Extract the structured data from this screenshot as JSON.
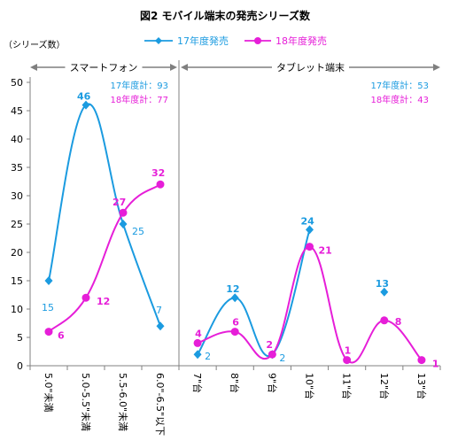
{
  "chart_data": {
    "type": "line",
    "title": "図2 モバイル端末の発売シリーズ数",
    "ylabel": "（シリーズ数）",
    "ylim": [
      0,
      50
    ],
    "yticks": [
      0,
      5,
      10,
      15,
      20,
      25,
      30,
      35,
      40,
      45,
      50
    ],
    "grid": false,
    "legend_position": "top",
    "sections": [
      {
        "label": "スマートフォン"
      },
      {
        "label": "タブレット端末"
      }
    ],
    "categories": [
      "5.0\"未満",
      "5.0-5.5\"未満",
      "5.5-6.0\"未満",
      "6.0\"-6.5\"以下",
      "7\"台",
      "8\"台",
      "9\"台",
      "10\"台",
      "11\"台",
      "12\"台",
      "13\"台"
    ],
    "series": [
      {
        "name": "17年度発売",
        "color": "#1b9be0",
        "values": [
          15,
          46,
          25,
          7,
          2,
          12,
          2,
          24,
          null,
          13,
          null
        ],
        "segments": [
          [
            0,
            3
          ],
          [
            4,
            7
          ]
        ]
      },
      {
        "name": "18年度発売",
        "color": "#e61ed8",
        "values": [
          6,
          12,
          27,
          32,
          4,
          6,
          2,
          21,
          1,
          8,
          1
        ],
        "segments": [
          [
            0,
            3
          ],
          [
            4,
            10
          ]
        ]
      }
    ],
    "annotations": [
      {
        "series": 0,
        "section": 0,
        "text": "17年度計：93"
      },
      {
        "series": 1,
        "section": 0,
        "text": "18年度計：77"
      },
      {
        "series": 0,
        "section": 1,
        "text": "17年度計：53"
      },
      {
        "series": 1,
        "section": 1,
        "text": "18年度計：43"
      }
    ]
  }
}
